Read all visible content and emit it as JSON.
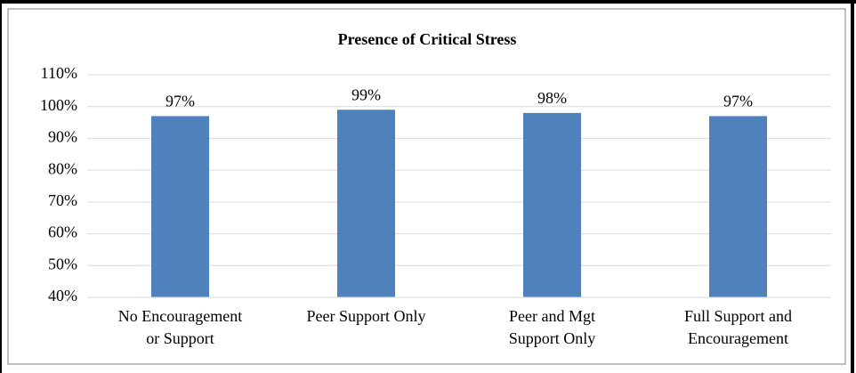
{
  "chart_data": {
    "type": "bar",
    "title": "Presence of Critical Stress",
    "categories": [
      "No Encouragement or Support",
      "Peer Support Only",
      "Peer and Mgt Support Only",
      "Full Support and Encouragement"
    ],
    "values": [
      97,
      99,
      98,
      97
    ],
    "value_labels": [
      "97%",
      "99%",
      "98%",
      "97%"
    ],
    "color": "#4f81bd",
    "ylim": [
      40,
      110
    ],
    "yticks": [
      {
        "value": 40,
        "label": "40%"
      },
      {
        "value": 50,
        "label": "50%"
      },
      {
        "value": 60,
        "label": "60%"
      },
      {
        "value": 70,
        "label": "70%"
      },
      {
        "value": 80,
        "label": "80%"
      },
      {
        "value": 90,
        "label": "90%"
      },
      {
        "value": 100,
        "label": "100%"
      },
      {
        "value": 110,
        "label": "110%"
      }
    ],
    "grid": true
  }
}
